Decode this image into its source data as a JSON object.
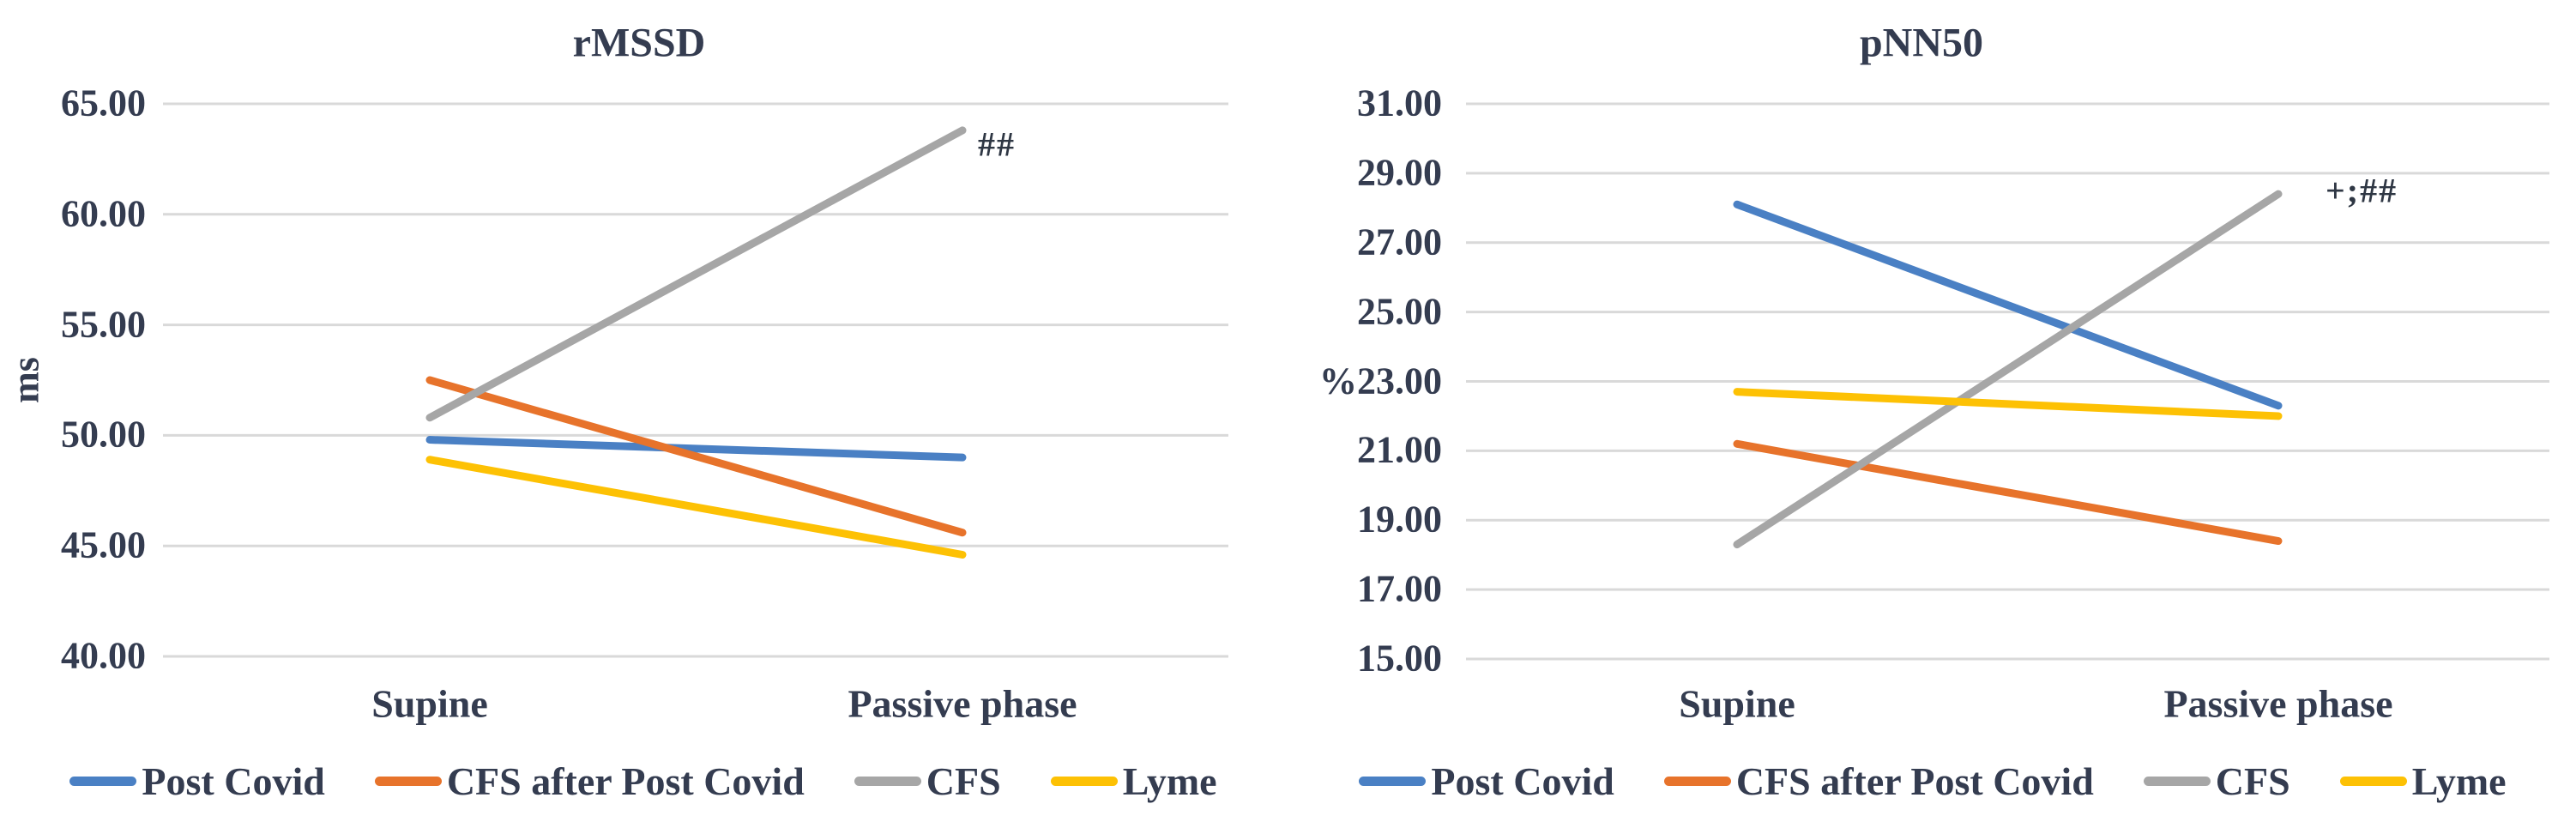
{
  "figure": {
    "background_color": "#ffffff",
    "text_color": "#343c50",
    "gridline_color": "#d9d9d9"
  },
  "chart_data": [
    {
      "type": "line",
      "title": "rMSSD",
      "ylabel": "ms",
      "xlabel": "",
      "categories": [
        "Supine",
        "Passive phase"
      ],
      "ylim": [
        40,
        65
      ],
      "ytick_step": 5,
      "y_ticks": [
        "65.00",
        "60.00",
        "55.00",
        "50.00",
        "45.00",
        "40.00"
      ],
      "grid": "horizontal",
      "legend_position": "bottom",
      "series": [
        {
          "name": "Post Covid",
          "color": "#4a80c4",
          "values": [
            49.8,
            49.0
          ]
        },
        {
          "name": "CFS after Post Covid",
          "color": "#e7732b",
          "values": [
            52.5,
            45.6
          ]
        },
        {
          "name": "CFS",
          "color": "#a6a6a6",
          "values": [
            50.8,
            63.8
          ]
        },
        {
          "name": "Lyme",
          "color": "#fdc104",
          "values": [
            48.9,
            44.6
          ]
        }
      ],
      "annotation": {
        "text": "##",
        "attached_to_series": "CFS",
        "position": "end-of-line"
      }
    },
    {
      "type": "line",
      "title": "pNN50",
      "ylabel": "%",
      "xlabel": "",
      "categories": [
        "Supine",
        "Passive phase"
      ],
      "ylim": [
        15,
        31
      ],
      "ytick_step": 2,
      "y_ticks": [
        "31.00",
        "29.00",
        "27.00",
        "25.00",
        "23.00",
        "21.00",
        "19.00",
        "17.00",
        "15.00"
      ],
      "grid": "horizontal",
      "legend_position": "bottom",
      "series": [
        {
          "name": "Post Covid",
          "color": "#4a80c4",
          "values": [
            28.1,
            22.3
          ]
        },
        {
          "name": "CFS after Post Covid",
          "color": "#e7732b",
          "values": [
            21.2,
            18.4
          ]
        },
        {
          "name": "CFS",
          "color": "#a6a6a6",
          "values": [
            18.3,
            28.4
          ]
        },
        {
          "name": "Lyme",
          "color": "#fdc104",
          "values": [
            22.7,
            22.0
          ]
        }
      ],
      "annotation": {
        "text": "+;##",
        "attached_to_series": "CFS",
        "position": "end-of-line"
      }
    }
  ]
}
